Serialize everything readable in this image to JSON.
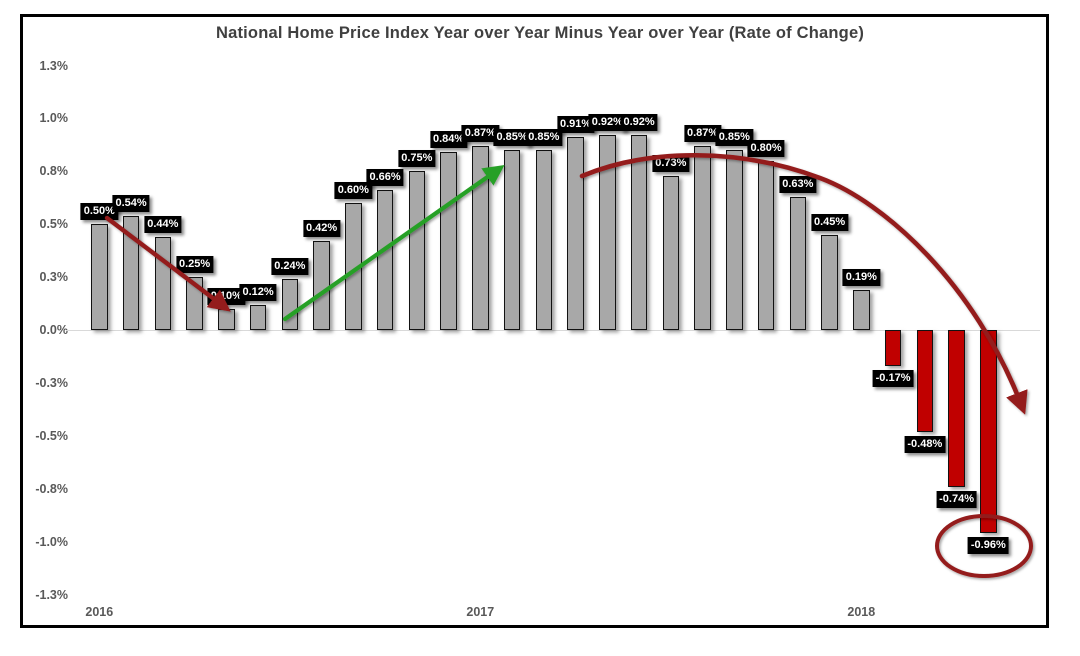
{
  "title": "National Home Price Index Year over Year Minus Year over Year (Rate of Change)",
  "colors": {
    "bar_positive": "#a8a8a8",
    "bar_negative": "#c00000",
    "bar_border": "#121212",
    "label_bg": "#000000",
    "label_text": "#ffffff",
    "downtrend_arrow": "#941a1a",
    "uptrend_arrow": "#28a028",
    "axis_text": "#595959",
    "title_text": "#404040",
    "zero_line": "#d9d9d9",
    "frame_border": "#000000"
  },
  "chart_data": {
    "type": "bar",
    "title": "National Home Price Index Year over Year Minus Year over Year (Rate of Change)",
    "xlabel": "",
    "ylabel": "",
    "ylim": [
      -1.25,
      1.25
    ],
    "grid": "zero-line-only",
    "legend": "none",
    "y_tick_labels": [
      "1.3%",
      "1.0%",
      "0.8%",
      "0.5%",
      "0.3%",
      "0.0%",
      "-0.3%",
      "-0.5%",
      "-0.8%",
      "-1.0%",
      "-1.3%"
    ],
    "x_year_labels": [
      "2016",
      "2017",
      "2018"
    ],
    "year_start_indices": [
      0,
      12,
      24
    ],
    "values": [
      0.5,
      0.54,
      0.44,
      0.25,
      0.1,
      0.12,
      0.24,
      0.42,
      0.6,
      0.66,
      0.75,
      0.84,
      0.87,
      0.85,
      0.85,
      0.91,
      0.92,
      0.92,
      0.73,
      0.87,
      0.85,
      0.8,
      0.63,
      0.45,
      0.19,
      -0.17,
      -0.48,
      -0.74,
      -0.96
    ],
    "bar_labels": [
      "0.50%",
      "0.54%",
      "0.44%",
      "0.25%",
      "0.10%",
      "0.12%",
      "0.24%",
      "0.42%",
      "0.60%",
      "0.66%",
      "0.75%",
      "0.84%",
      "0.87%",
      "0.85%",
      "0.85%",
      "0.91%",
      "0.92%",
      "0.92%",
      "0.73%",
      "0.87%",
      "0.85%",
      "0.80%",
      "0.63%",
      "0.45%",
      "0.19%",
      "-0.17%",
      "-0.48%",
      "-0.74%",
      "-0.96%"
    ],
    "annotations": [
      {
        "name": "downtrend-arrow",
        "type": "straight-arrow",
        "color": "#941a1a",
        "note": "from 0.50% label down to top of 0.10% bar"
      },
      {
        "name": "uptrend-arrow",
        "type": "straight-arrow",
        "color": "#28a028",
        "note": "from base near 0.24% bar up to 0.85% bar top"
      },
      {
        "name": "downturn-curve-arrow",
        "type": "curved-arrow",
        "color": "#941a1a",
        "note": "arc over 2017 peak plunging past last bar"
      },
      {
        "name": "lowest-value-ellipse",
        "type": "ellipse",
        "color": "#941a1a",
        "note": "circles the -0.96% label"
      }
    ]
  }
}
